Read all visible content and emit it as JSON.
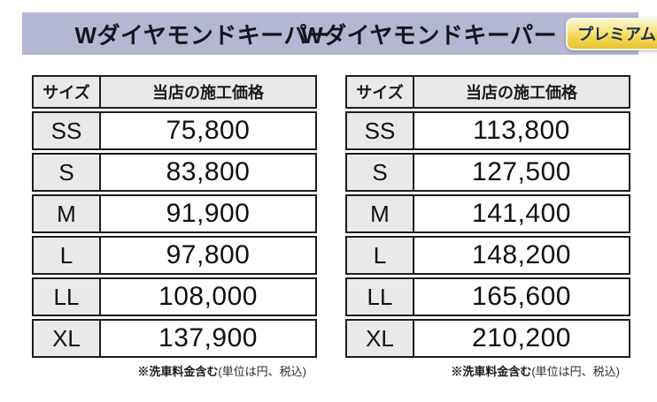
{
  "header": {
    "standard_title": "Wダイヤモンドキーパー",
    "premium_title": "Wダイヤモンドキーパー",
    "premium_badge": "プレミアム"
  },
  "colors": {
    "band_bg": "#b3b7d2",
    "cell_gray": "#e9e9e9",
    "table_border": "#1c1c1c",
    "badge_gold_top": "#fbf5d6",
    "badge_gold_bottom": "#e9c235",
    "badge_text": "#1c2b52"
  },
  "tables": [
    {
      "name": "Wダイヤモンドキーパー",
      "columns": {
        "size": "サイズ",
        "price": "当店の施工価格"
      },
      "rows": [
        {
          "size": "SS",
          "price": "75,800"
        },
        {
          "size": "S",
          "price": "83,800"
        },
        {
          "size": "M",
          "price": "91,900"
        },
        {
          "size": "L",
          "price": "97,800"
        },
        {
          "size": "LL",
          "price": "108,000"
        },
        {
          "size": "XL",
          "price": "137,900"
        }
      ],
      "footnote": {
        "bold": "※洗車料金含む",
        "regular": "(単位は円、税込)"
      }
    },
    {
      "name": "Wダイヤモンドキーパー プレミアム",
      "columns": {
        "size": "サイズ",
        "price": "当店の施工価格"
      },
      "rows": [
        {
          "size": "SS",
          "price": "113,800"
        },
        {
          "size": "S",
          "price": "127,500"
        },
        {
          "size": "M",
          "price": "141,400"
        },
        {
          "size": "L",
          "price": "148,200"
        },
        {
          "size": "LL",
          "price": "165,600"
        },
        {
          "size": "XL",
          "price": "210,200"
        }
      ],
      "footnote": {
        "bold": "※洗車料金含む",
        "regular": "(単位は円、税込)"
      }
    }
  ]
}
